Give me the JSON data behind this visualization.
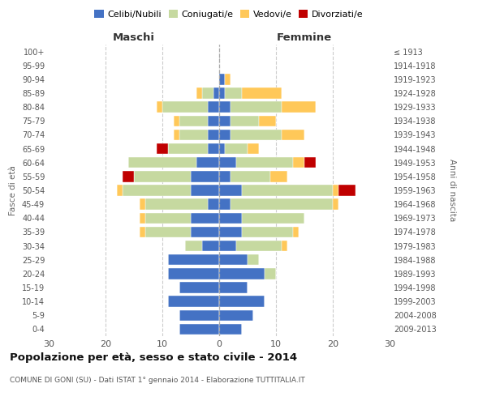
{
  "age_groups": [
    "0-4",
    "5-9",
    "10-14",
    "15-19",
    "20-24",
    "25-29",
    "30-34",
    "35-39",
    "40-44",
    "45-49",
    "50-54",
    "55-59",
    "60-64",
    "65-69",
    "70-74",
    "75-79",
    "80-84",
    "85-89",
    "90-94",
    "95-99",
    "100+"
  ],
  "birth_years": [
    "2009-2013",
    "2004-2008",
    "1999-2003",
    "1994-1998",
    "1989-1993",
    "1984-1988",
    "1979-1983",
    "1974-1978",
    "1969-1973",
    "1964-1968",
    "1959-1963",
    "1954-1958",
    "1949-1953",
    "1944-1948",
    "1939-1943",
    "1934-1938",
    "1929-1933",
    "1924-1928",
    "1919-1923",
    "1914-1918",
    "≤ 1913"
  ],
  "male_celibi": [
    7,
    7,
    9,
    7,
    9,
    9,
    3,
    5,
    5,
    2,
    5,
    5,
    4,
    2,
    2,
    2,
    2,
    1,
    0,
    0,
    0
  ],
  "male_coniugati": [
    0,
    0,
    0,
    0,
    0,
    0,
    3,
    8,
    8,
    11,
    12,
    10,
    12,
    7,
    5,
    5,
    8,
    2,
    0,
    0,
    0
  ],
  "male_vedovi": [
    0,
    0,
    0,
    0,
    0,
    0,
    0,
    1,
    1,
    1,
    1,
    0,
    0,
    0,
    1,
    1,
    1,
    1,
    0,
    0,
    0
  ],
  "male_divorziati": [
    0,
    0,
    0,
    0,
    0,
    0,
    0,
    0,
    0,
    0,
    0,
    2,
    0,
    2,
    0,
    0,
    0,
    0,
    0,
    0,
    0
  ],
  "female_celibi": [
    4,
    6,
    8,
    5,
    8,
    5,
    3,
    4,
    4,
    2,
    4,
    2,
    3,
    1,
    2,
    2,
    2,
    1,
    1,
    0,
    0
  ],
  "female_coniugati": [
    0,
    0,
    0,
    0,
    2,
    2,
    8,
    9,
    11,
    18,
    16,
    7,
    10,
    4,
    9,
    5,
    9,
    3,
    0,
    0,
    0
  ],
  "female_vedovi": [
    0,
    0,
    0,
    0,
    0,
    0,
    1,
    1,
    0,
    1,
    1,
    3,
    2,
    2,
    4,
    3,
    6,
    7,
    1,
    0,
    0
  ],
  "female_divorziati": [
    0,
    0,
    0,
    0,
    0,
    0,
    0,
    0,
    0,
    0,
    3,
    0,
    2,
    0,
    0,
    0,
    0,
    0,
    0,
    0,
    0
  ],
  "color_celibi": "#4472C4",
  "color_coniugati": "#C6D9A0",
  "color_vedovi": "#FFC859",
  "color_divorziati": "#C00000",
  "title_main": "Popolazione per età, sesso e stato civile - 2014",
  "title_sub": "COMUNE DI GONI (SU) - Dati ISTAT 1° gennaio 2014 - Elaborazione TUTTITALIA.IT",
  "xlabel_left": "Maschi",
  "xlabel_right": "Femmine",
  "ylabel_left": "Fasce di età",
  "ylabel_right": "Anni di nascita",
  "xlim": 30,
  "bg_color": "#ffffff",
  "grid_color": "#cccccc"
}
